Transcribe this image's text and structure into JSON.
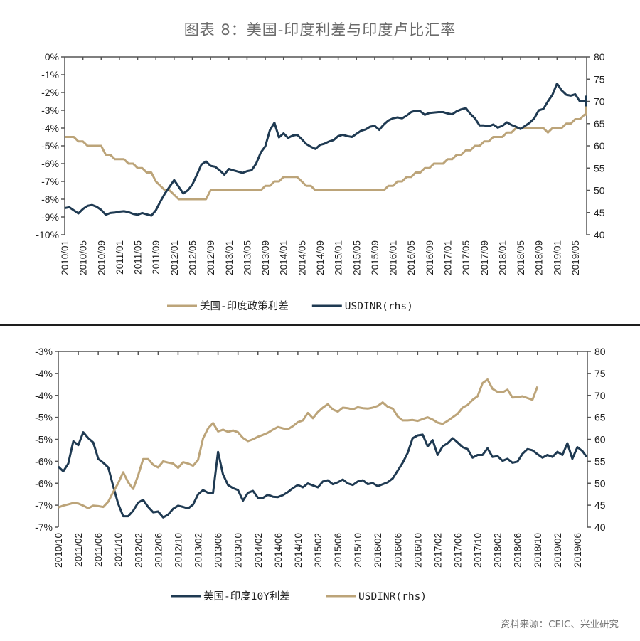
{
  "title": "图表 8：美国-印度利差与印度卢比汇率",
  "source": "资料来源：CEIC、兴业研究",
  "colors": {
    "gold": "#BCA479",
    "navy": "#1F3A52",
    "axis": "#555555"
  },
  "chart_data": [
    {
      "type": "line",
      "title": "",
      "x_start": "2010/01",
      "x_tick_labels": [
        "2010/01",
        "2010/05",
        "2010/09",
        "2011/01",
        "2011/05",
        "2011/09",
        "2012/01",
        "2012/05",
        "2012/09",
        "2013/01",
        "2013/05",
        "2013/09",
        "2014/01",
        "2014/05",
        "2014/09",
        "2015/01",
        "2015/05",
        "2015/09",
        "2016/01",
        "2016/05",
        "2016/09",
        "2017/01",
        "2017/05",
        "2017/09",
        "2018/01",
        "2018/05",
        "2018/09",
        "2019/01",
        "2019/05"
      ],
      "y_left": {
        "ylim": [
          -10,
          0
        ],
        "ticks": [
          "0%",
          "-1%",
          "-2%",
          "-3%",
          "-4%",
          "-5%",
          "-6%",
          "-7%",
          "-8%",
          "-9%",
          "-10%"
        ]
      },
      "y_right": {
        "ylim": [
          40,
          80
        ],
        "ticks": [
          "80",
          "75",
          "70",
          "65",
          "60",
          "55",
          "50",
          "45",
          "40"
        ]
      },
      "legend_position": "bottom",
      "series": [
        {
          "name": "美国-印度政策利差",
          "axis": "left",
          "color": "gold",
          "values": [
            -4.5,
            -4.5,
            -4.5,
            -4.75,
            -4.75,
            -5,
            -5,
            -5,
            -5,
            -5.5,
            -5.5,
            -5.75,
            -5.75,
            -5.75,
            -6,
            -6,
            -6.25,
            -6.25,
            -6.5,
            -6.5,
            -7,
            -7.25,
            -7.5,
            -7.5,
            -7.75,
            -8,
            -8,
            -8,
            -8,
            -8,
            -8,
            -8,
            -7.5,
            -7.5,
            -7.5,
            -7.5,
            -7.5,
            -7.5,
            -7.5,
            -7.5,
            -7.5,
            -7.5,
            -7.5,
            -7.5,
            -7.25,
            -7.25,
            -7,
            -7,
            -6.75,
            -6.75,
            -6.75,
            -6.75,
            -7,
            -7.25,
            -7.25,
            -7.5,
            -7.5,
            -7.5,
            -7.5,
            -7.5,
            -7.5,
            -7.5,
            -7.5,
            -7.5,
            -7.5,
            -7.5,
            -7.5,
            -7.5,
            -7.5,
            -7.5,
            -7.5,
            -7.25,
            -7.25,
            -7,
            -7,
            -6.75,
            -6.75,
            -6.5,
            -6.5,
            -6.25,
            -6.25,
            -6,
            -6,
            -6,
            -5.75,
            -5.75,
            -5.5,
            -5.5,
            -5.25,
            -5.25,
            -5,
            -5,
            -4.75,
            -4.75,
            -4.5,
            -4.5,
            -4.5,
            -4.25,
            -4.25,
            -4,
            -4,
            -4,
            -4,
            -4,
            -4,
            -4,
            -4.25,
            -4,
            -4,
            -4,
            -3.75,
            -3.75,
            -3.5,
            -3.5,
            -3.25,
            -3.25,
            -3,
            -3,
            -2.75,
            -2.75,
            -2.5,
            -2.5,
            -2.5
          ]
        },
        {
          "name": "USDINR(rhs)",
          "axis": "right",
          "color": "navy",
          "values": [
            46,
            46.2,
            45.5,
            44.8,
            45.8,
            46.5,
            46.7,
            46.3,
            45.6,
            44.5,
            44.9,
            45,
            45.2,
            45.3,
            45.1,
            44.7,
            44.5,
            44.9,
            44.6,
            44.3,
            45.5,
            47.5,
            49.3,
            50.8,
            52.3,
            50.8,
            49.3,
            50,
            51.3,
            53.5,
            55.8,
            56.5,
            55.5,
            55.3,
            54.5,
            53.5,
            54.8,
            54.5,
            54.2,
            53.9,
            54.3,
            54.5,
            56,
            58.5,
            59.9,
            63.5,
            65.2,
            61.9,
            62.8,
            61.8,
            62.3,
            62.5,
            61.5,
            60.4,
            59.8,
            59.3,
            60.2,
            60.5,
            61,
            61.3,
            62.2,
            62.5,
            62.2,
            62,
            62.7,
            63.4,
            63.7,
            64.3,
            64.5,
            63.6,
            64.8,
            65.7,
            66.2,
            66.4,
            66.2,
            66.8,
            67.6,
            67.9,
            67.8,
            67,
            67.4,
            67.5,
            67.6,
            67.6,
            67.3,
            67.1,
            67.8,
            68.2,
            68.5,
            67.2,
            66.2,
            64.6,
            64.6,
            64.4,
            64.8,
            64.1,
            64.5,
            65.3,
            64.7,
            64.3,
            63.8,
            64.5,
            65.2,
            66.2,
            68,
            68.3,
            70,
            71.5,
            74,
            72.5,
            71.5,
            71.3,
            71.6,
            70,
            70,
            70.2,
            69.8,
            69.1,
            71.3
          ]
        }
      ]
    },
    {
      "type": "line",
      "title": "",
      "x_start": "2010/10",
      "x_tick_labels": [
        "2010/10",
        "2011/02",
        "2011/06",
        "2011/10",
        "2012/02",
        "2012/06",
        "2012/10",
        "2013/02",
        "2013/06",
        "2013/10",
        "2014/02",
        "2014/06",
        "2014/10",
        "2015/02",
        "2015/06",
        "2015/10",
        "2016/02",
        "2016/06",
        "2016/10",
        "2017/02",
        "2017/06",
        "2017/10",
        "2018/02",
        "2018/06",
        "2018/10",
        "2019/02",
        "2019/06"
      ],
      "y_left": {
        "ylim": [
          -7.5,
          -3.0
        ],
        "ticks": [
          "-3%",
          "-4%",
          "-4%",
          "-5%",
          "-5%",
          "-6%",
          "-6%",
          "-7%",
          "-7%"
        ]
      },
      "y_right": {
        "ylim": [
          40,
          80
        ],
        "ticks": [
          "80",
          "75",
          "70",
          "65",
          "60",
          "55",
          "50",
          "45",
          "40"
        ]
      },
      "legend_position": "bottom",
      "series": [
        {
          "name": "美国-印度10Y利差",
          "axis": "left",
          "color": "navy",
          "values": [
            -5.95,
            -6.07,
            -5.87,
            -5.3,
            -5.4,
            -5.07,
            -5.22,
            -5.33,
            -5.75,
            -5.85,
            -5.97,
            -6.45,
            -6.9,
            -7.22,
            -7.22,
            -7.08,
            -6.87,
            -6.8,
            -6.98,
            -7.12,
            -7.1,
            -7.25,
            -7.18,
            -7.03,
            -6.95,
            -6.98,
            -7.02,
            -6.92,
            -6.66,
            -6.55,
            -6.62,
            -6.62,
            -5.57,
            -6.15,
            -6.42,
            -6.5,
            -6.55,
            -6.82,
            -6.62,
            -6.57,
            -6.75,
            -6.75,
            -6.67,
            -6.72,
            -6.73,
            -6.68,
            -6.6,
            -6.5,
            -6.42,
            -6.48,
            -6.38,
            -6.43,
            -6.48,
            -6.33,
            -6.3,
            -6.4,
            -6.35,
            -6.28,
            -6.38,
            -6.42,
            -6.33,
            -6.3,
            -6.4,
            -6.37,
            -6.45,
            -6.4,
            -6.35,
            -6.25,
            -6.05,
            -5.85,
            -5.6,
            -5.22,
            -5.15,
            -5.13,
            -5.43,
            -5.27,
            -5.65,
            -5.43,
            -5.35,
            -5.22,
            -5.33,
            -5.45,
            -5.5,
            -5.72,
            -5.65,
            -5.65,
            -5.48,
            -5.7,
            -5.68,
            -5.8,
            -5.75,
            -5.85,
            -5.82,
            -5.62,
            -5.5,
            -5.53,
            -5.63,
            -5.72,
            -5.65,
            -5.7,
            -5.57,
            -5.65,
            -5.35,
            -5.75,
            -5.45,
            -5.55,
            -5.7
          ]
        },
        {
          "name": "USDINR(rhs)",
          "axis": "right",
          "color": "gold",
          "values": [
            44.5,
            44.9,
            45.2,
            45.5,
            45.4,
            44.9,
            44.3,
            44.9,
            44.8,
            44.6,
            45.8,
            48,
            50,
            52.5,
            50.2,
            48.7,
            51.8,
            55.5,
            55.5,
            54.2,
            53.6,
            55,
            54.7,
            54.5,
            53.5,
            54.8,
            54.5,
            54,
            55.3,
            60.2,
            62.5,
            63.7,
            61.8,
            62.2,
            61.7,
            62,
            61.6,
            60.3,
            59.6,
            60,
            60.6,
            61,
            61.5,
            62.2,
            62.8,
            62.5,
            62.3,
            63,
            63.9,
            64.3,
            66,
            64.8,
            66.2,
            67.2,
            68,
            66.8,
            66.3,
            67.2,
            67.1,
            66.8,
            67.3,
            67.1,
            67,
            67.2,
            67.6,
            68.4,
            67.4,
            67,
            65.2,
            64.3,
            64.3,
            64.4,
            64.2,
            64.6,
            65,
            64.5,
            63.8,
            63.5,
            64.2,
            65,
            65.8,
            67.2,
            67.8,
            69,
            69.8,
            72.8,
            73.6,
            71.5,
            70.8,
            70.7,
            71.3,
            69.5,
            69.6,
            69.8,
            69.4,
            69,
            72
          ],
          "note": "values continue to last month shown"
        }
      ]
    }
  ],
  "legend": {
    "top": [
      {
        "label": "美国-印度政策利差",
        "color": "gold"
      },
      {
        "label": "USDINR(rhs)",
        "color": "navy"
      }
    ],
    "bottom": [
      {
        "label": "美国-印度10Y利差",
        "color": "navy"
      },
      {
        "label": "USDINR(rhs)",
        "color": "gold"
      }
    ]
  }
}
